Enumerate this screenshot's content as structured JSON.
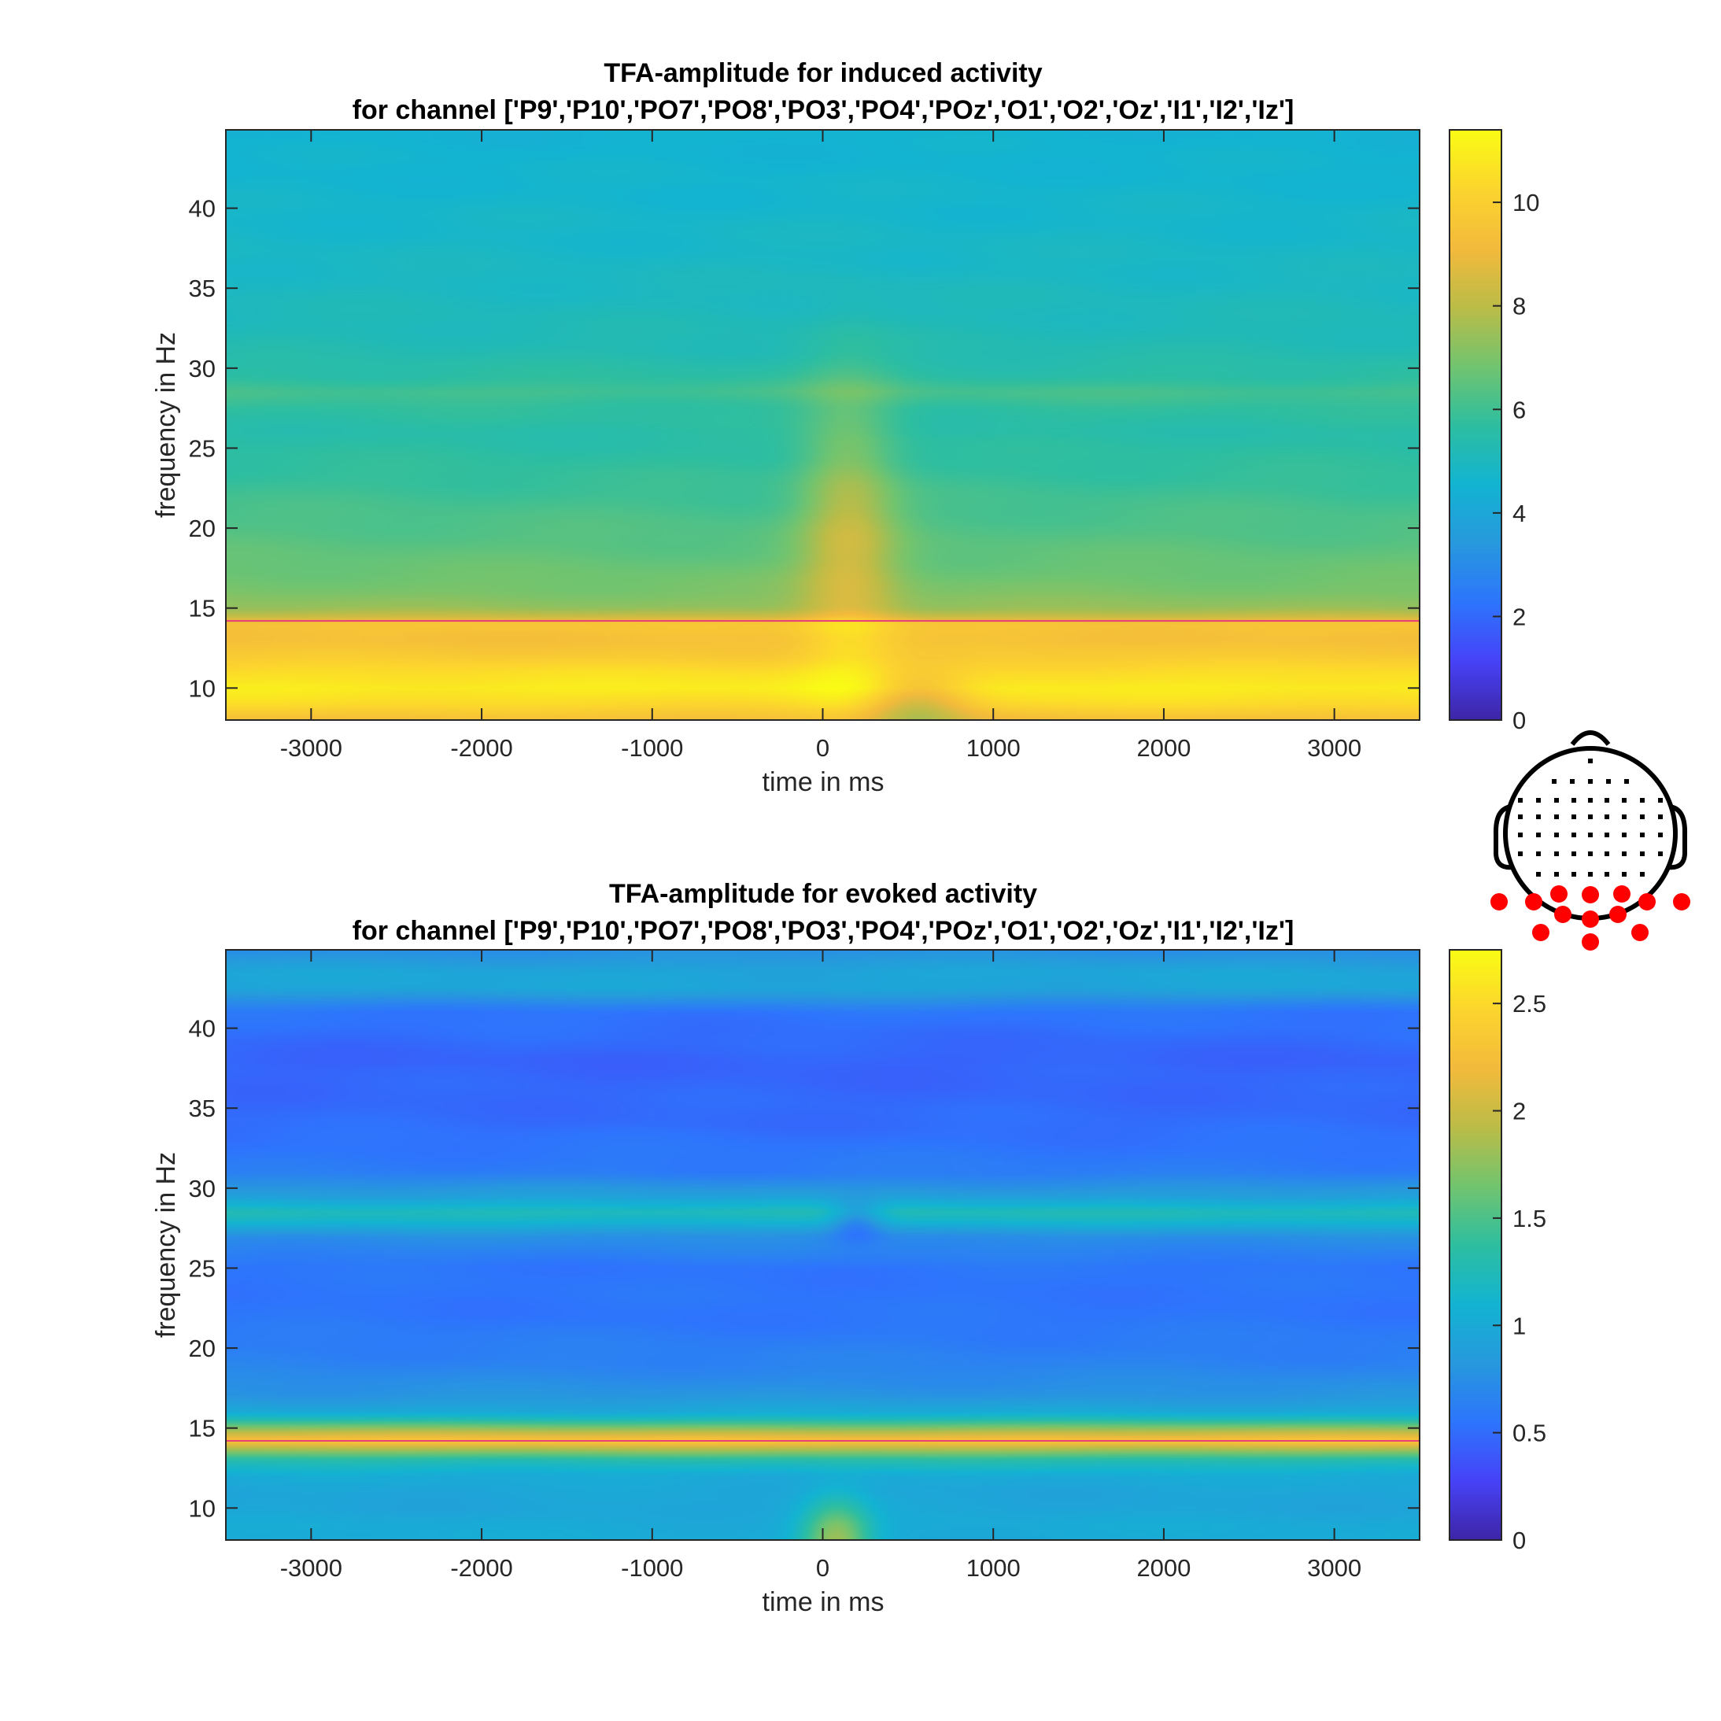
{
  "colors": {
    "axis": "#262626",
    "marker_line": "#e8417a",
    "electrode_active": "#ff0000",
    "electrode_inactive": "#000000",
    "colormap": [
      "#3e26a8",
      "#4743f8",
      "#2d76fc",
      "#2799dd",
      "#13b4d2",
      "#2ebea0",
      "#72c46f",
      "#bbbc48",
      "#f3ba3c",
      "#fcd52e",
      "#f9fb15"
    ]
  },
  "chart_data": [
    {
      "type": "heatmap",
      "title_lines": [
        "TFA-amplitude for induced activity",
        "for channel ['P9','P10','PO7','PO8','PO3','PO4','POz','O1','O2','Oz','I1','I2','Iz']"
      ],
      "xlabel": "time in ms",
      "ylabel": "frequency in Hz",
      "xlim": [
        -3500,
        3500
      ],
      "ylim": [
        8,
        44.9
      ],
      "xticks": [
        -3000,
        -2000,
        -1000,
        0,
        1000,
        2000,
        3000
      ],
      "yticks": [
        10,
        15,
        20,
        25,
        30,
        35,
        40
      ],
      "clim": [
        0,
        11.4
      ],
      "cticks": [
        0,
        2,
        4,
        6,
        8,
        10
      ],
      "hline_y": 14.2,
      "freq_profile": [
        [
          8,
          9.3
        ],
        [
          9,
          10.4
        ],
        [
          10,
          11.0
        ],
        [
          11,
          10.5
        ],
        [
          12,
          9.8
        ],
        [
          13,
          9.4
        ],
        [
          14,
          9.6
        ],
        [
          14.5,
          8.2
        ],
        [
          15,
          7.4
        ],
        [
          16,
          7.0
        ],
        [
          17,
          6.8
        ],
        [
          18,
          6.6
        ],
        [
          20,
          6.3
        ],
        [
          22,
          6.0
        ],
        [
          24,
          5.7
        ],
        [
          26,
          5.5
        ],
        [
          27.5,
          5.7
        ],
        [
          28.5,
          6.1
        ],
        [
          29.5,
          5.6
        ],
        [
          31,
          5.3
        ],
        [
          33,
          5.1
        ],
        [
          36,
          4.9
        ],
        [
          40,
          4.7
        ],
        [
          44.9,
          4.5
        ]
      ],
      "burst": {
        "time_ms": 150,
        "width_ms": 280,
        "freq_center": 20,
        "freq_width": 9,
        "amplitude": 1.9
      },
      "dip": {
        "time_ms": 550,
        "width_ms": 300,
        "freq_center": 9,
        "freq_width": 2,
        "amplitude": -2.0
      }
    },
    {
      "type": "heatmap",
      "title_lines": [
        "TFA-amplitude for evoked activity",
        "for channel ['P9','P10','PO7','PO8','PO3','PO4','POz','O1','O2','Oz','I1','I2','Iz']"
      ],
      "xlabel": "time in ms",
      "ylabel": "frequency in Hz",
      "xlim": [
        -3500,
        3500
      ],
      "ylim": [
        8,
        44.9
      ],
      "xticks": [
        -3000,
        -2000,
        -1000,
        0,
        1000,
        2000,
        3000
      ],
      "yticks": [
        10,
        15,
        20,
        25,
        30,
        35,
        40
      ],
      "clim": [
        0,
        2.75
      ],
      "cticks": [
        0,
        0.5,
        1,
        1.5,
        2,
        2.5
      ],
      "hline_y": 14.2,
      "freq_profile": [
        [
          8,
          1.0
        ],
        [
          9,
          1.0
        ],
        [
          10,
          0.95
        ],
        [
          11,
          0.95
        ],
        [
          12,
          1.0
        ],
        [
          13,
          1.3
        ],
        [
          13.6,
          1.8
        ],
        [
          14.2,
          2.35
        ],
        [
          14.8,
          1.9
        ],
        [
          15.5,
          1.3
        ],
        [
          16,
          1.0
        ],
        [
          17,
          0.8
        ],
        [
          19,
          0.65
        ],
        [
          22,
          0.55
        ],
        [
          25,
          0.55
        ],
        [
          27,
          0.75
        ],
        [
          28,
          1.15
        ],
        [
          28.5,
          1.25
        ],
        [
          29.5,
          0.9
        ],
        [
          31,
          0.6
        ],
        [
          34,
          0.5
        ],
        [
          38,
          0.45
        ],
        [
          41,
          0.55
        ],
        [
          42.5,
          0.95
        ],
        [
          43.5,
          0.95
        ],
        [
          44.9,
          0.75
        ]
      ],
      "burst": {
        "time_ms": 80,
        "width_ms": 200,
        "freq_center": 8,
        "freq_width": 2.5,
        "amplitude": 0.8
      },
      "dip": {
        "time_ms": 200,
        "width_ms": 150,
        "freq_center": 28,
        "freq_width": 1.2,
        "amplitude": -0.4
      }
    }
  ],
  "head_map": {
    "active_channels": [
      "P9",
      "P10",
      "PO7",
      "PO8",
      "PO3",
      "PO4",
      "POz",
      "O1",
      "O2",
      "Oz",
      "I1",
      "I2",
      "Iz"
    ]
  }
}
